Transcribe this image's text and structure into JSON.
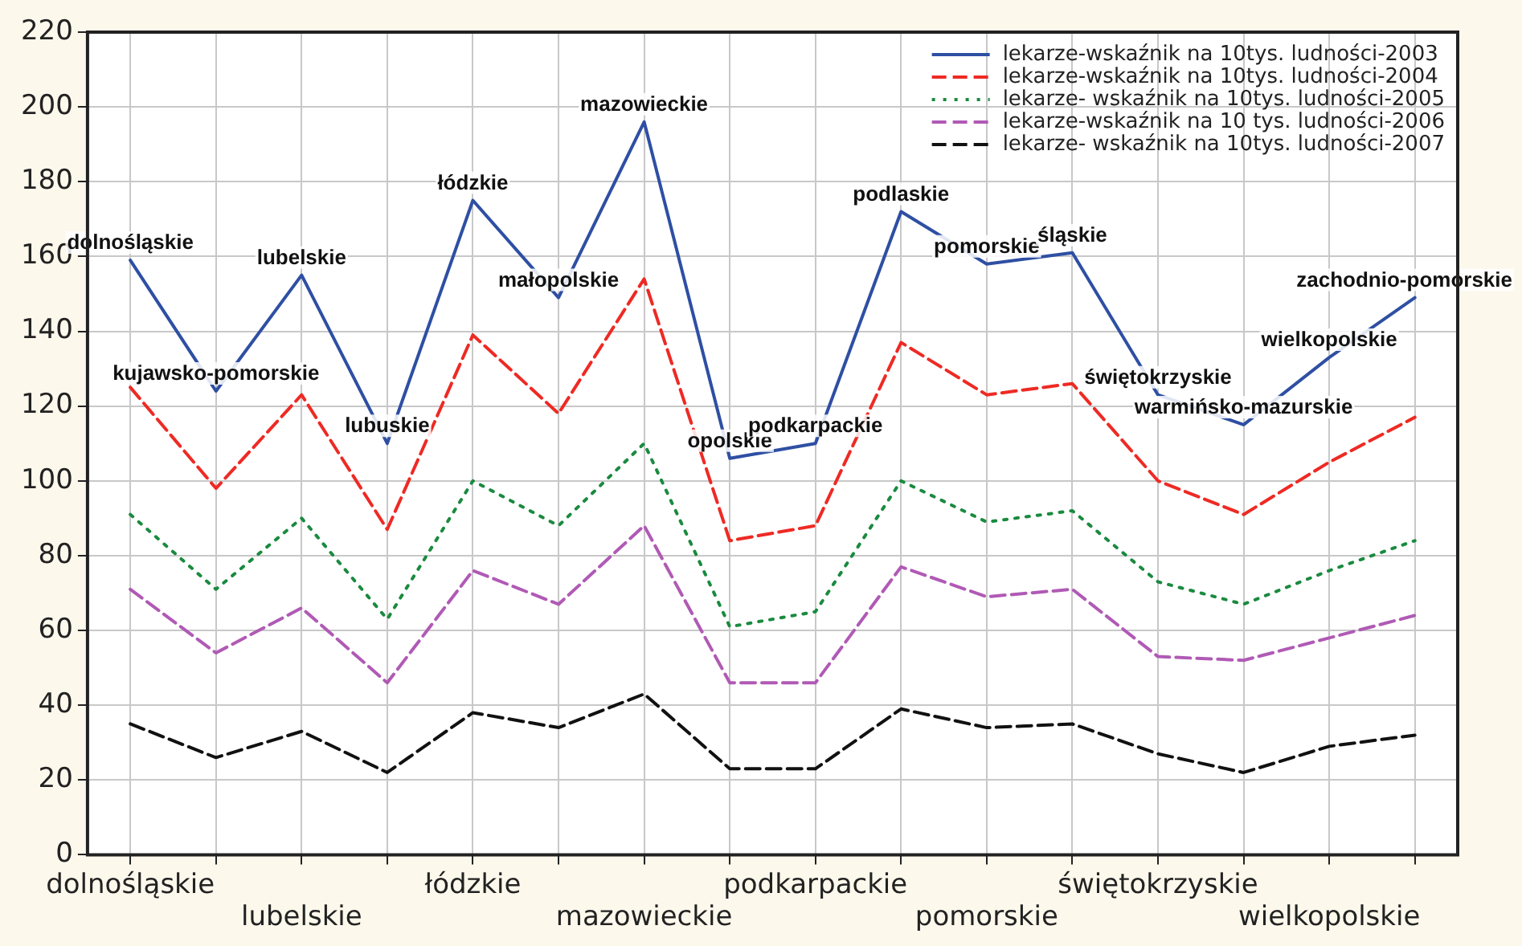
{
  "chart_data": {
    "type": "line",
    "categories": [
      "dolnośląskie",
      null,
      "lubelskie",
      null,
      "łódzkie",
      null,
      "mazowieckie",
      null,
      "podkarpackie",
      null,
      "pomorskie",
      null,
      "świętokrzyskie",
      null,
      "wielkopolskie",
      null
    ],
    "series": [
      {
        "name": "lekarze-wskaźnik na 10tys. ludności-2003",
        "color": "#2e4fa3",
        "line_style": "solid",
        "values": [
          159,
          124,
          155,
          110,
          175,
          149,
          196,
          106,
          110,
          172,
          158,
          161,
          123,
          115,
          133,
          149
        ]
      },
      {
        "name": "lekarze-wskaźnik na 10tys. ludności-2004",
        "color": "#ee2a24",
        "line_style": "dashed",
        "values": [
          125,
          98,
          123,
          87,
          139,
          118,
          154,
          84,
          88,
          137,
          123,
          126,
          100,
          91,
          105,
          117
        ]
      },
      {
        "name": "lekarze- wskaźnik na 10tys. ludności-2005",
        "color": "#1a8a3f",
        "line_style": "dotted",
        "values": [
          91,
          71,
          90,
          63,
          100,
          88,
          110,
          61,
          65,
          100,
          89,
          92,
          73,
          67,
          76,
          84
        ]
      },
      {
        "name": "lekarze-wskaźnik na 10 tys. ludności-2006",
        "color": "#b05ab5",
        "line_style": "dashed",
        "values": [
          71,
          54,
          66,
          46,
          76,
          67,
          88,
          46,
          46,
          77,
          69,
          71,
          53,
          52,
          58,
          64
        ]
      },
      {
        "name": "lekarze- wskaźnik na 10tys. ludności-2007",
        "color": "#111111",
        "line_style": "dashed",
        "values": [
          35,
          26,
          33,
          22,
          38,
          34,
          43,
          23,
          23,
          39,
          34,
          35,
          27,
          22,
          29,
          32
        ]
      }
    ],
    "annotations": [
      {
        "text": "dolnośląskie",
        "y": 159
      },
      {
        "text": "kujawsko-pomorskie",
        "y": 124
      },
      {
        "text": "lubelskie",
        "y": 155
      },
      {
        "text": "lubuskie",
        "y": 110
      },
      {
        "text": "łódzkie",
        "y": 175
      },
      {
        "text": "małopolskie",
        "y": 149
      },
      {
        "text": "mazowieckie",
        "y": 196
      },
      {
        "text": "opolskie",
        "y": 106
      },
      {
        "text": "podkarpackie",
        "y": 110
      },
      {
        "text": "podlaskie",
        "y": 172
      },
      {
        "text": "pomorskie",
        "y": 158
      },
      {
        "text": "śląskie",
        "y": 161
      },
      {
        "text": "świętokrzyskie",
        "y": 123
      },
      {
        "text": "warmińsko-mazurskie",
        "y": 115
      },
      {
        "text": "wielkopolskie",
        "y": 133
      },
      {
        "text": "zachodnio-pomorskie",
        "y": 149
      }
    ],
    "ylim": [
      0,
      220
    ],
    "yticks": [
      0,
      20,
      40,
      60,
      80,
      100,
      120,
      140,
      160,
      180,
      200,
      220
    ],
    "grid": true,
    "legend": "top right",
    "marker": "none"
  }
}
